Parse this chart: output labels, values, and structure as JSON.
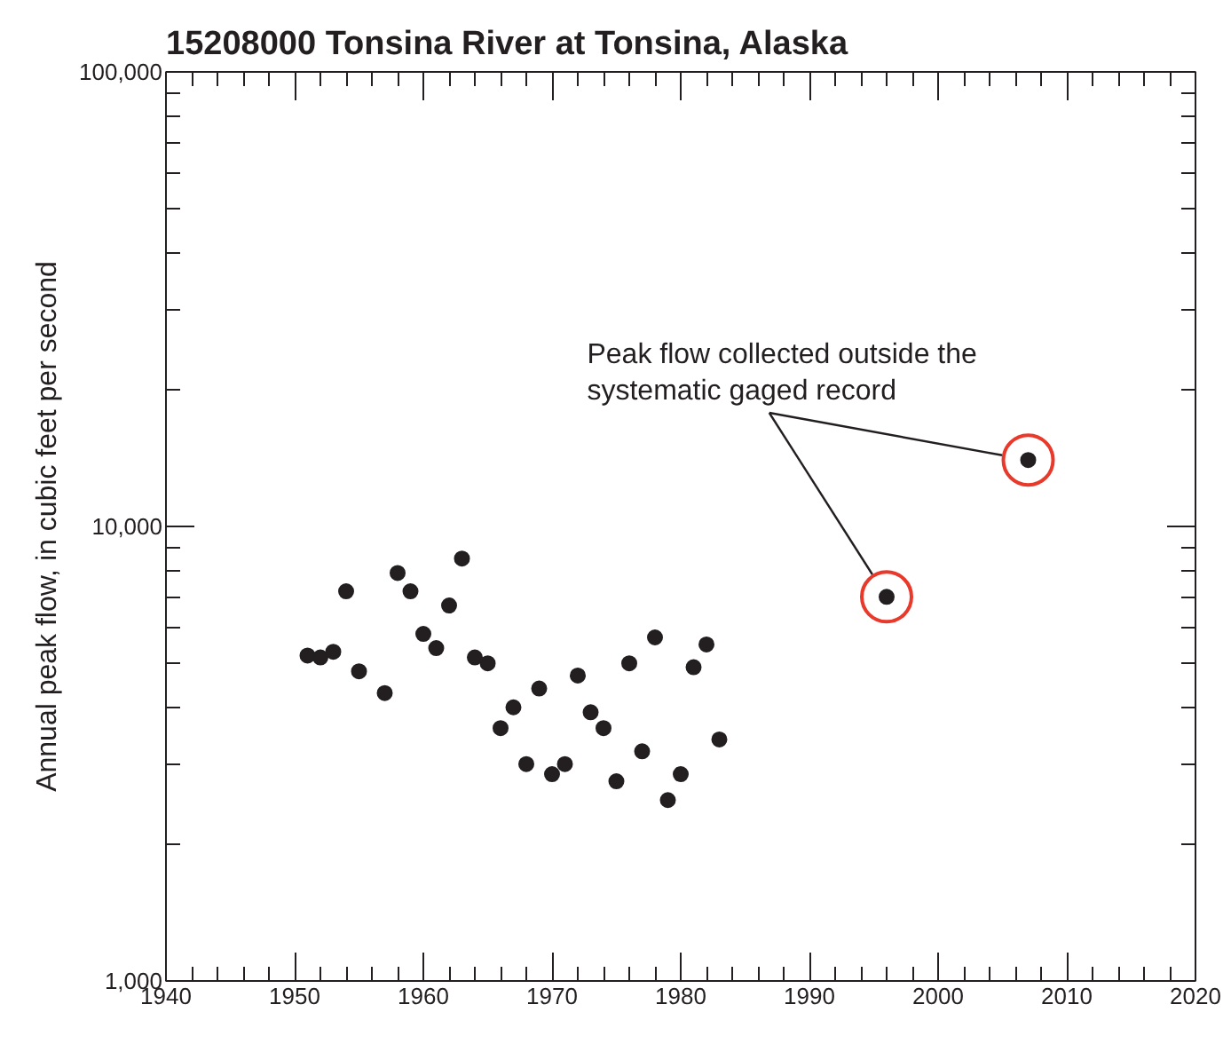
{
  "chart_data": {
    "type": "scatter",
    "title": "15208000 Tonsina River at Tonsina, Alaska",
    "ylabel": "Annual peak flow, in cubic feet per second",
    "annotations": [
      "Peak flow collected outside the\nsystematic gaged record"
    ],
    "series": [
      {
        "color": "#231f20",
        "x": [
          1951,
          1952,
          1953,
          1954,
          1955,
          1957,
          1958,
          1959,
          1960,
          1961,
          1962,
          1963,
          1964,
          1965,
          1966,
          1967,
          1968,
          1969,
          1970,
          1971,
          1972,
          1973,
          1974,
          1975,
          1976,
          1977,
          1978,
          1979,
          1980,
          1981,
          1982,
          1983
        ],
        "values": [
          5200,
          5150,
          5300,
          7200,
          4800,
          4300,
          7900,
          7200,
          5800,
          5400,
          6700,
          8500,
          5150,
          5000,
          3600,
          4000,
          3000,
          4400,
          2850,
          3000,
          4700,
          3900,
          3600,
          2750,
          5000,
          3200,
          5700,
          2500,
          2850,
          4900,
          5500,
          3400
        ]
      },
      {
        "color": "#231f20",
        "x": [
          1996,
          2007
        ],
        "values": [
          7000,
          14000
        ]
      }
    ],
    "marker": "circle",
    "log": "y",
    "grid": false,
    "xlim": [
      1940,
      2020
    ],
    "xticks": [
      1940,
      1950,
      1960,
      1970,
      1980,
      1990,
      2000,
      2010,
      2020
    ],
    "ylim": [
      1000,
      100000
    ],
    "yticks": [
      {
        "value": 1000,
        "label": "1,000"
      },
      {
        "value": 10000,
        "label": "10,000"
      },
      {
        "value": 100000,
        "label": "100,000"
      }
    ]
  }
}
